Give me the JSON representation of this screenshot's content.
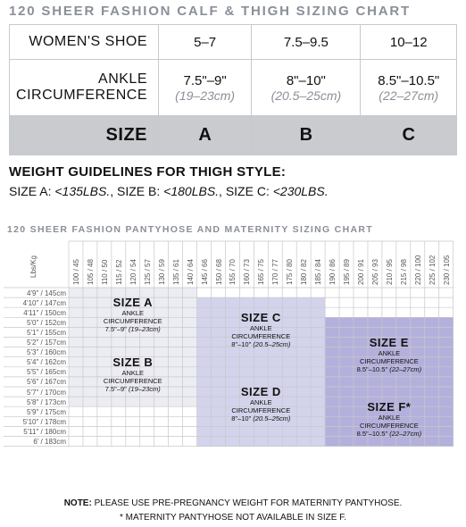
{
  "calf_chart": {
    "title": "120 SHEER FASHION CALF & THIGH SIZING CHART",
    "rows": [
      {
        "label": "WOMEN'S SHOE",
        "values": [
          "5–7",
          "7.5–9.5",
          "10–12"
        ]
      },
      {
        "label_line1": "ANKLE",
        "label_line2": "CIRCUMFERENCE",
        "values": [
          "7.5\"–9\"",
          "8\"–10\"",
          "8.5\"–10.5\""
        ],
        "cm": [
          "(19–23cm)",
          "(20.5–25cm)",
          "(22–27cm)"
        ]
      },
      {
        "label": "SIZE",
        "values": [
          "A",
          "B",
          "C"
        ]
      }
    ]
  },
  "weight": {
    "title": "WEIGHT GUIDELINES FOR THIGH STYLE:",
    "a": "SIZE A: ",
    "a_val": "<135LBS.",
    "b": ", SIZE B: ",
    "b_val": "<180LBS.",
    "c": ", SIZE C: ",
    "c_val": "<230LBS."
  },
  "panty_chart": {
    "title": "120 SHEER FASHION PANTYHOSE AND MATERNITY SIZING CHART",
    "lbs_label": "Lbs/Kg",
    "weights": [
      "100 / 45",
      "105 / 48",
      "110 / 50",
      "115 / 52",
      "120 / 54",
      "125 / 57",
      "130 / 59",
      "135 / 61",
      "140 / 64",
      "145 / 66",
      "150 / 68",
      "155 / 70",
      "160 / 73",
      "165 / 75",
      "170 / 77",
      "175 / 80",
      "180 / 82",
      "185 / 84",
      "190 / 86",
      "195 / 89",
      "200 / 91",
      "205 / 93",
      "210 / 95",
      "215 / 98",
      "220 / 100",
      "225 / 102",
      "230 / 105"
    ],
    "heights": [
      "4'9\" / 145cm",
      "4'10\" / 147cm",
      "4'11\" / 150cm",
      "5'0\" / 152cm",
      "5'1\" / 155cm",
      "5'2\" / 157cm",
      "5'3\" / 160cm",
      "5'4\" / 162cm",
      "5'5\" / 165cm",
      "5'6\" / 167cm",
      "5'7\" / 170cm",
      "5'8\" / 173cm",
      "5'9\" / 175cm",
      "5'10\" / 178cm",
      "5'11\" / 180cm",
      "6' / 183cm"
    ],
    "zones": [
      {
        "name": "SIZE A",
        "sub1": "ANKLE",
        "sub2": "CIRCUMFERENCE",
        "range": "7.5\"–9\"",
        "cm": "(19–23cm)"
      },
      {
        "name": "SIZE B",
        "sub1": "ANKLE",
        "sub2": "CIRCUMFERENCE",
        "range": "7.5\"–9\"",
        "cm": "(19–23cm)"
      },
      {
        "name": "SIZE C",
        "sub1": "ANKLE",
        "sub2": "CIRCUMFERENCE",
        "range": "8\"–10\"",
        "cm": "(20.5–25cm)"
      },
      {
        "name": "SIZE D",
        "sub1": "ANKLE",
        "sub2": "CIRCUMFERENCE",
        "range": "8\"–10\"",
        "cm": "(20.5–25cm)"
      },
      {
        "name": "SIZE E",
        "sub1": "ANKLE",
        "sub2": "CIRCUMFERENCE",
        "range": "8.5\"–10.5\"",
        "cm": "(22–27cm)"
      },
      {
        "name": "SIZE F*",
        "sub1": "ANKLE",
        "sub2": "CIRCUMFERENCE",
        "range": "8.5\"–10.5\"",
        "cm": "(22–27cm)"
      }
    ],
    "zone_colors": {
      "ab": "#ececf3",
      "cd": "#d3d3ec",
      "ef": "#b4b0dc"
    }
  },
  "notes": {
    "note_label": "NOTE:",
    "note_text": " PLEASE USE PRE-PREGNANCY WEIGHT FOR MATERNITY PANTYHOSE.",
    "footnote": "* MATERNITY PANTYHOSE NOT AVAILABLE IN SIZE F."
  }
}
